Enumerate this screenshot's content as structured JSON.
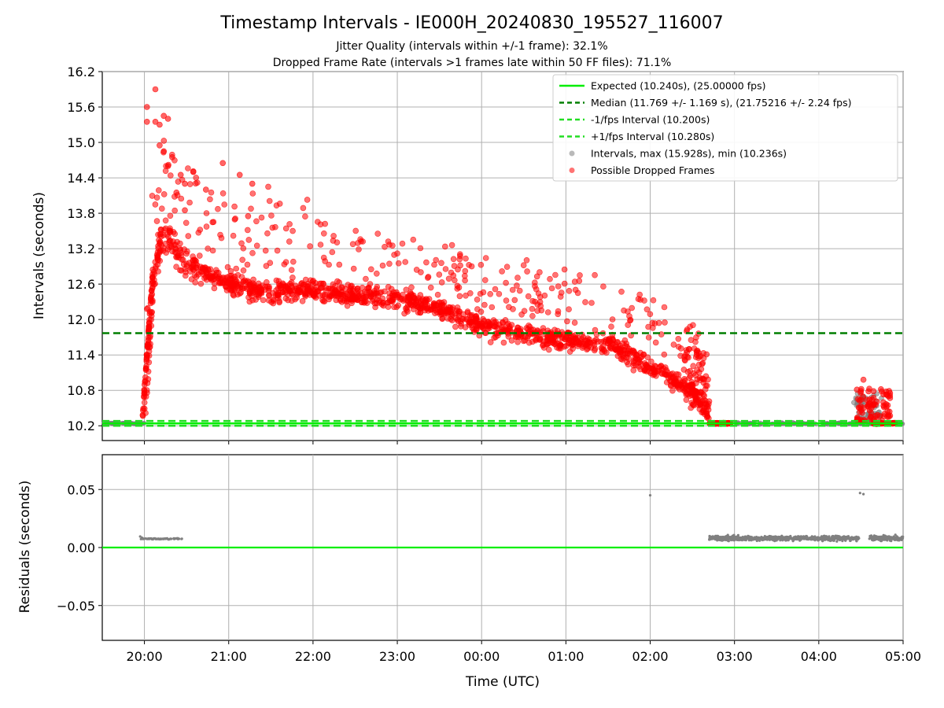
{
  "chart_data": [
    {
      "type": "scatter",
      "title": "Timestamp Intervals - IE000H_20240830_195527_116007",
      "subtitle_lines": [
        "Jitter Quality (intervals within +/-1 frame): 32.1%",
        "Dropped Frame Rate (intervals >1 frames late within 50 FF files): 71.1%"
      ],
      "xlabel": "",
      "ylabel": "Intervals (seconds)",
      "x_unit": "hours since 19:30 UTC",
      "xlim": [
        0,
        9.5
      ],
      "ylim": [
        9.95,
        16.2
      ],
      "yticks": [
        10.2,
        10.8,
        11.4,
        12.0,
        12.6,
        13.2,
        13.8,
        14.4,
        15.0,
        15.6,
        16.2
      ],
      "ytick_labels": [
        "10.2",
        "10.8",
        "11.4",
        "12.0",
        "12.6",
        "13.2",
        "13.8",
        "14.4",
        "15.0",
        "15.6",
        "16.2"
      ],
      "grid": true,
      "legend_position": "top-right",
      "legend": [
        "Expected (10.240s), (25.00000 fps)",
        "Median (11.769 +/- 1.169 s), (21.75216 +/- 2.24 fps)",
        "-1/fps Interval (10.200s)",
        "+1/fps Interval (10.280s)",
        "Intervals, max (15.928s), min (10.236s)",
        "Possible Dropped Frames"
      ],
      "reference_lines": {
        "expected": 10.24,
        "median": 11.769,
        "minus_fps": 10.2,
        "plus_fps": 10.28
      },
      "series_trend": {
        "name": "Possible Dropped Frames",
        "x": [
          0.5,
          0.55,
          0.6,
          0.7,
          0.8,
          0.9,
          1.0,
          1.5,
          2.0,
          2.5,
          3.0,
          3.5,
          4.0,
          4.5,
          5.0,
          5.5,
          6.0,
          6.5,
          7.0,
          7.2
        ],
        "y": [
          10.5,
          11.2,
          12.6,
          13.4,
          13.4,
          13.1,
          12.9,
          12.6,
          12.45,
          12.5,
          12.4,
          12.35,
          12.2,
          11.9,
          11.75,
          11.65,
          11.6,
          11.2,
          10.8,
          10.4
        ]
      },
      "series_extremes": {
        "max": 15.928,
        "min": 10.236
      },
      "gray_intervals_region": {
        "x": [
          8.9,
          9.6
        ],
        "y": [
          10.25,
          10.75
        ]
      },
      "red_burst_region": {
        "x": [
          8.95,
          9.35
        ],
        "y": [
          10.25,
          11.0
        ]
      },
      "colors": {
        "expected": "#00ee00",
        "median": "#007f00",
        "fps_bounds": "#22dd22",
        "intervals": "#808080",
        "dropped": "#ff0000"
      }
    },
    {
      "type": "scatter",
      "title": "",
      "xlabel": "Time (UTC)",
      "ylabel": "Residuals (seconds)",
      "xlim": [
        0,
        9.5
      ],
      "ylim": [
        -0.08,
        0.08
      ],
      "xticks": [
        0.5,
        1.5,
        2.5,
        3.5,
        4.5,
        5.5,
        6.5,
        7.5,
        8.5,
        9.5
      ],
      "xtick_labels": [
        "20:00",
        "21:00",
        "22:00",
        "23:00",
        "00:00",
        "01:00",
        "02:00",
        "03:00",
        "04:00",
        "05:00"
      ],
      "yticks": [
        -0.05,
        0.0,
        0.05
      ],
      "ytick_labels": [
        "−0.05",
        "0.00",
        "0.05"
      ],
      "grid": true,
      "zero_line": 0.0,
      "residual_clusters": [
        {
          "x_range": [
            0.45,
            0.95
          ],
          "y_center": 0.0075
        },
        {
          "x_range": [
            7.2,
            9.5
          ],
          "y_center": 0.008
        }
      ],
      "outliers": [
        {
          "x": 6.5,
          "y": 0.045
        },
        {
          "x": 8.99,
          "y": 0.047
        },
        {
          "x": 9.03,
          "y": 0.046
        }
      ]
    }
  ]
}
